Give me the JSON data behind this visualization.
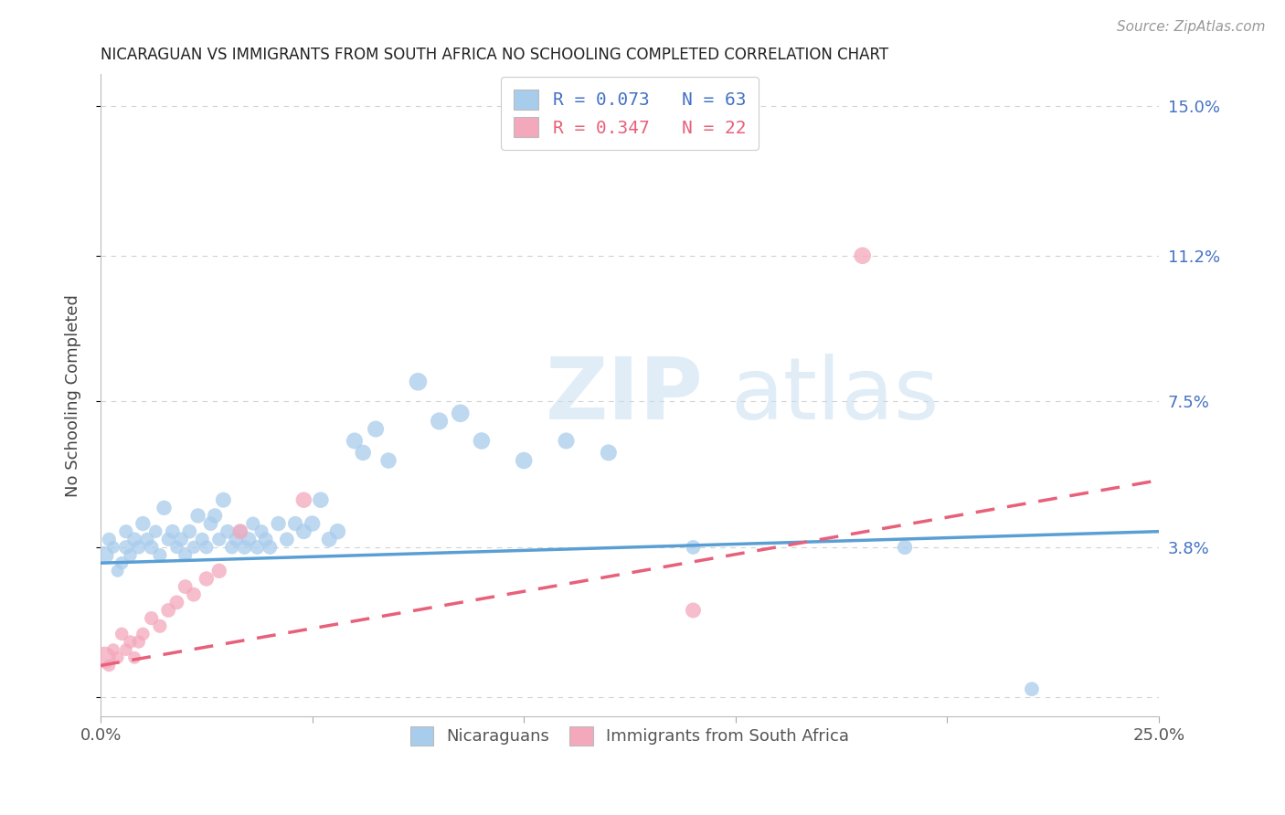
{
  "title": "NICARAGUAN VS IMMIGRANTS FROM SOUTH AFRICA NO SCHOOLING COMPLETED CORRELATION CHART",
  "source": "Source: ZipAtlas.com",
  "ylabel": "No Schooling Completed",
  "xlim": [
    0.0,
    0.25
  ],
  "ylim": [
    -0.005,
    0.158
  ],
  "xtick_positions": [
    0.0,
    0.05,
    0.1,
    0.15,
    0.2,
    0.25
  ],
  "xticklabels": [
    "0.0%",
    "",
    "",
    "",
    "",
    "25.0%"
  ],
  "ytick_positions": [
    0.0,
    0.038,
    0.075,
    0.112,
    0.15
  ],
  "right_ytick_positions": [
    0.038,
    0.075,
    0.112,
    0.15
  ],
  "right_ytick_labels": [
    "3.8%",
    "7.5%",
    "11.2%",
    "15.0%"
  ],
  "legend_line1": "R = 0.073   N = 63",
  "legend_line2": "R = 0.347   N = 22",
  "color_blue": "#a8ccec",
  "color_pink": "#f4a8bc",
  "color_blue_dark": "#5a9fd4",
  "color_pink_dark": "#e8607a",
  "color_blue_label": "#4472c4",
  "grid_color": "#cccccc",
  "blue_scatter_x": [
    0.001,
    0.002,
    0.003,
    0.004,
    0.005,
    0.006,
    0.006,
    0.007,
    0.008,
    0.009,
    0.01,
    0.011,
    0.012,
    0.013,
    0.014,
    0.015,
    0.016,
    0.017,
    0.018,
    0.019,
    0.02,
    0.021,
    0.022,
    0.023,
    0.024,
    0.025,
    0.026,
    0.027,
    0.028,
    0.029,
    0.03,
    0.031,
    0.032,
    0.033,
    0.034,
    0.035,
    0.036,
    0.037,
    0.038,
    0.039,
    0.04,
    0.042,
    0.044,
    0.046,
    0.048,
    0.05,
    0.052,
    0.054,
    0.056,
    0.06,
    0.062,
    0.065,
    0.068,
    0.075,
    0.08,
    0.085,
    0.09,
    0.1,
    0.11,
    0.12,
    0.14,
    0.19,
    0.22
  ],
  "blue_scatter_y": [
    0.036,
    0.04,
    0.038,
    0.032,
    0.034,
    0.038,
    0.042,
    0.036,
    0.04,
    0.038,
    0.044,
    0.04,
    0.038,
    0.042,
    0.036,
    0.048,
    0.04,
    0.042,
    0.038,
    0.04,
    0.036,
    0.042,
    0.038,
    0.046,
    0.04,
    0.038,
    0.044,
    0.046,
    0.04,
    0.05,
    0.042,
    0.038,
    0.04,
    0.042,
    0.038,
    0.04,
    0.044,
    0.038,
    0.042,
    0.04,
    0.038,
    0.044,
    0.04,
    0.044,
    0.042,
    0.044,
    0.05,
    0.04,
    0.042,
    0.065,
    0.062,
    0.068,
    0.06,
    0.08,
    0.07,
    0.072,
    0.065,
    0.06,
    0.065,
    0.062,
    0.038,
    0.038,
    0.002
  ],
  "blue_scatter_sizes": [
    200,
    120,
    100,
    100,
    110,
    130,
    120,
    110,
    130,
    120,
    140,
    120,
    130,
    110,
    120,
    140,
    120,
    130,
    110,
    130,
    120,
    130,
    110,
    140,
    120,
    120,
    130,
    140,
    120,
    150,
    130,
    120,
    130,
    120,
    130,
    140,
    120,
    130,
    120,
    130,
    130,
    140,
    130,
    140,
    150,
    160,
    160,
    150,
    160,
    170,
    160,
    170,
    160,
    200,
    190,
    200,
    180,
    180,
    170,
    170,
    130,
    140,
    130
  ],
  "pink_scatter_x": [
    0.001,
    0.002,
    0.003,
    0.004,
    0.005,
    0.006,
    0.007,
    0.008,
    0.009,
    0.01,
    0.012,
    0.014,
    0.016,
    0.018,
    0.02,
    0.022,
    0.025,
    0.028,
    0.033,
    0.048,
    0.14,
    0.18
  ],
  "pink_scatter_y": [
    0.01,
    0.008,
    0.012,
    0.01,
    0.016,
    0.012,
    0.014,
    0.01,
    0.014,
    0.016,
    0.02,
    0.018,
    0.022,
    0.024,
    0.028,
    0.026,
    0.03,
    0.032,
    0.042,
    0.05,
    0.022,
    0.112
  ],
  "pink_scatter_sizes": [
    300,
    100,
    100,
    100,
    110,
    100,
    110,
    100,
    110,
    110,
    120,
    120,
    130,
    130,
    130,
    130,
    140,
    140,
    150,
    160,
    150,
    180
  ],
  "blue_line_x": [
    0.0,
    0.25
  ],
  "blue_line_y": [
    0.034,
    0.042
  ],
  "pink_line_x": [
    0.0,
    0.25
  ],
  "pink_line_y": [
    0.008,
    0.055
  ]
}
